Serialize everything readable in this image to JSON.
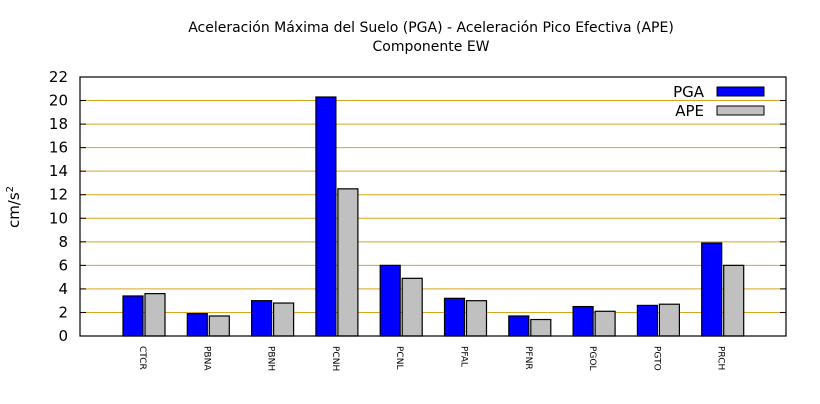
{
  "chart_data": {
    "type": "bar",
    "title": "Aceleración Máxima del Suelo (PGA) -  Aceleración Pico Efectiva (APE)",
    "subtitle": "Componente EW",
    "xlabel": "",
    "ylabel": "cm/s",
    "ylabel_sup": "2",
    "ylim": [
      0,
      22
    ],
    "yticks": [
      0,
      2,
      4,
      6,
      8,
      10,
      12,
      14,
      16,
      18,
      20,
      22
    ],
    "grid": true,
    "grid_color": "#daa520",
    "legend_position": "top-right",
    "categories": [
      "CTCR",
      "PBNA",
      "PBNH",
      "PCNH",
      "PCNL",
      "PFAL",
      "PFNR",
      "PGOL",
      "PGTO",
      "PRCH"
    ],
    "series": [
      {
        "name": "PGA",
        "color": "#0000ff",
        "values": [
          3.4,
          1.9,
          3.0,
          20.3,
          6.0,
          3.2,
          1.7,
          2.5,
          2.6,
          7.9
        ]
      },
      {
        "name": "APE",
        "color": "#c0c0c0",
        "values": [
          3.6,
          1.7,
          2.8,
          12.5,
          4.9,
          3.0,
          1.4,
          2.1,
          2.7,
          6.0
        ]
      }
    ]
  }
}
